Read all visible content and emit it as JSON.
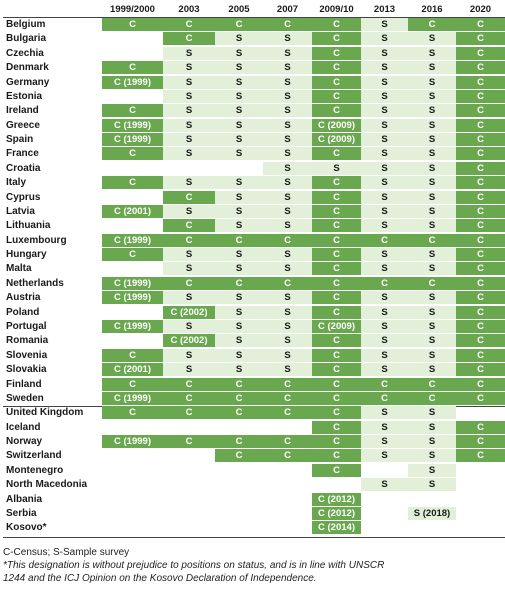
{
  "table": {
    "headers": [
      "1999/2000",
      "2003",
      "2005",
      "2007",
      "2009/10",
      "2013",
      "2016",
      "2020"
    ],
    "rows": [
      {
        "country": "Belgium",
        "cells": [
          "C",
          "C",
          "C",
          "C",
          "C",
          "S",
          "C",
          "C"
        ]
      },
      {
        "country": "Bulgaria",
        "cells": [
          "",
          "C",
          "S",
          "S",
          "C",
          "S",
          "S",
          "C"
        ]
      },
      {
        "country": "Czechia",
        "cells": [
          "",
          "S",
          "S",
          "S",
          "C",
          "S",
          "S",
          "C"
        ]
      },
      {
        "country": "Denmark",
        "cells": [
          "C",
          "S",
          "S",
          "S",
          "C",
          "S",
          "S",
          "C"
        ]
      },
      {
        "country": "Germany",
        "cells": [
          "C (1999)",
          "S",
          "S",
          "S",
          "C",
          "S",
          "S",
          "C"
        ]
      },
      {
        "country": "Estonia",
        "cells": [
          "",
          "S",
          "S",
          "S",
          "C",
          "S",
          "S",
          "C"
        ]
      },
      {
        "country": "Ireland",
        "cells": [
          "C",
          "S",
          "S",
          "S",
          "C",
          "S",
          "S",
          "C"
        ]
      },
      {
        "country": "Greece",
        "cells": [
          "C (1999)",
          "S",
          "S",
          "S",
          "C (2009)",
          "S",
          "S",
          "C"
        ]
      },
      {
        "country": "Spain",
        "cells": [
          "C (1999)",
          "S",
          "S",
          "S",
          "C (2009)",
          "S",
          "S",
          "C"
        ]
      },
      {
        "country": "France",
        "cells": [
          "C",
          "S",
          "S",
          "S",
          "C",
          "S",
          "S",
          "C"
        ]
      },
      {
        "country": "Croatia",
        "cells": [
          "",
          "",
          "",
          "S",
          "S",
          "S",
          "S",
          "C"
        ]
      },
      {
        "country": "Italy",
        "cells": [
          "C",
          "S",
          "S",
          "S",
          "C",
          "S",
          "S",
          "C"
        ]
      },
      {
        "country": "Cyprus",
        "cells": [
          "",
          "C",
          "S",
          "S",
          "C",
          "S",
          "S",
          "C"
        ]
      },
      {
        "country": "Latvia",
        "cells": [
          "C (2001)",
          "S",
          "S",
          "S",
          "C",
          "S",
          "S",
          "C"
        ]
      },
      {
        "country": "Lithuania",
        "cells": [
          "",
          "C",
          "S",
          "S",
          "C",
          "S",
          "S",
          "C"
        ]
      },
      {
        "country": "Luxembourg",
        "cells": [
          "C (1999)",
          "C",
          "C",
          "C",
          "C",
          "C",
          "C",
          "C"
        ]
      },
      {
        "country": "Hungary",
        "cells": [
          "C",
          "S",
          "S",
          "S",
          "C",
          "S",
          "S",
          "C"
        ]
      },
      {
        "country": "Malta",
        "cells": [
          "",
          "S",
          "S",
          "S",
          "C",
          "S",
          "S",
          "C"
        ]
      },
      {
        "country": "Netherlands",
        "cells": [
          "C (1999)",
          "C",
          "C",
          "C",
          "C",
          "C",
          "C",
          "C"
        ]
      },
      {
        "country": "Austria",
        "cells": [
          "C (1999)",
          "S",
          "S",
          "S",
          "C",
          "S",
          "S",
          "C"
        ]
      },
      {
        "country": "Poland",
        "cells": [
          "",
          "C (2002)",
          "S",
          "S",
          "C",
          "S",
          "S",
          "C"
        ]
      },
      {
        "country": "Portugal",
        "cells": [
          "C (1999)",
          "S",
          "S",
          "S",
          "C (2009)",
          "S",
          "S",
          "C"
        ]
      },
      {
        "country": "Romania",
        "cells": [
          "",
          "C (2002)",
          "S",
          "S",
          "C",
          "S",
          "S",
          "C"
        ]
      },
      {
        "country": "Slovenia",
        "cells": [
          "C",
          "S",
          "S",
          "S",
          "C",
          "S",
          "S",
          "C"
        ]
      },
      {
        "country": "Slovakia",
        "cells": [
          "C (2001)",
          "S",
          "S",
          "S",
          "C",
          "S",
          "S",
          "C"
        ]
      },
      {
        "country": "Finland",
        "cells": [
          "C",
          "C",
          "C",
          "C",
          "C",
          "C",
          "C",
          "C"
        ]
      },
      {
        "country": "Sweden",
        "cells": [
          "C (1999)",
          "C",
          "C",
          "C",
          "C",
          "C",
          "C",
          "C"
        ]
      },
      {
        "country": "United Kingdom",
        "cells": [
          "C",
          "C",
          "C",
          "C",
          "C",
          "S",
          "S",
          ""
        ]
      },
      {
        "country": "Iceland",
        "cells": [
          "",
          "",
          "",
          "",
          "C",
          "S",
          "S",
          "C"
        ]
      },
      {
        "country": "Norway",
        "cells": [
          "C (1999)",
          "C",
          "C",
          "C",
          "C",
          "S",
          "S",
          "C"
        ]
      },
      {
        "country": "Switzerland",
        "cells": [
          "",
          "",
          "C",
          "C",
          "C",
          "S",
          "S",
          "C"
        ]
      },
      {
        "country": "Montenegro",
        "cells": [
          "",
          "",
          "",
          "",
          "C",
          "",
          "S",
          ""
        ]
      },
      {
        "country": "North Macedonia",
        "cells": [
          "",
          "",
          "",
          "",
          "",
          "S",
          "S",
          ""
        ]
      },
      {
        "country": "Albania",
        "cells": [
          "",
          "",
          "",
          "",
          "C (2012)",
          "",
          "",
          ""
        ]
      },
      {
        "country": "Serbia",
        "cells": [
          "",
          "",
          "",
          "",
          "C (2012)",
          "",
          "S (2018)",
          ""
        ]
      },
      {
        "country": "Kosovo*",
        "cells": [
          "",
          "",
          "",
          "",
          "C (2014)",
          "",
          "",
          ""
        ]
      }
    ]
  },
  "notes": {
    "legend": "C-Census; S-Sample survey",
    "footnote_line1": "*This designation is without prejudice to positions on status, and is in line with UNSCR",
    "footnote_line2": "1244 and the ICJ Opinion on the Kosovo Declaration of Independence."
  }
}
